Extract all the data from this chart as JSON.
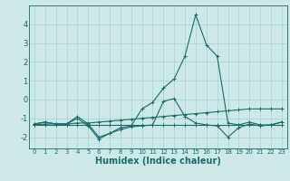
{
  "xlabel": "Humidex (Indice chaleur)",
  "xlim": [
    -0.5,
    23.5
  ],
  "ylim": [
    -2.6,
    5.0
  ],
  "yticks": [
    -2,
    -1,
    0,
    1,
    2,
    3,
    4
  ],
  "xticks": [
    0,
    1,
    2,
    3,
    4,
    5,
    6,
    7,
    8,
    9,
    10,
    11,
    12,
    13,
    14,
    15,
    16,
    17,
    18,
    19,
    20,
    21,
    22,
    23
  ],
  "background_color": "#cce9e8",
  "grid_color": "#aacfcf",
  "line_color": "#1a6b6b",
  "series": [
    {
      "x": [
        0,
        1,
        2,
        3,
        4,
        5,
        6,
        7,
        8,
        9,
        10,
        11,
        12,
        13,
        14,
        15,
        16,
        17,
        18,
        19,
        20,
        21,
        22,
        23
      ],
      "y": [
        -1.35,
        -1.3,
        -1.3,
        -1.3,
        -1.25,
        -1.25,
        -1.2,
        -1.15,
        -1.1,
        -1.05,
        -1.0,
        -0.95,
        -0.9,
        -0.85,
        -0.8,
        -0.75,
        -0.7,
        -0.65,
        -0.6,
        -0.55,
        -0.5,
        -0.5,
        -0.5,
        -0.5
      ]
    },
    {
      "x": [
        0,
        1,
        2,
        3,
        4,
        5,
        6,
        7,
        8,
        9,
        10,
        11,
        12,
        13,
        14,
        15,
        16,
        17,
        18,
        19,
        20,
        21,
        22,
        23
      ],
      "y": [
        -1.35,
        -1.35,
        -1.35,
        -1.35,
        -1.35,
        -1.35,
        -1.35,
        -1.35,
        -1.35,
        -1.35,
        -1.35,
        -1.35,
        -1.35,
        -1.35,
        -1.35,
        -1.35,
        -1.35,
        -1.35,
        -1.35,
        -1.35,
        -1.35,
        -1.35,
        -1.35,
        -1.35
      ]
    },
    {
      "x": [
        0,
        1,
        2,
        3,
        4,
        5,
        6,
        7,
        8,
        9,
        10,
        11,
        12,
        13,
        14,
        15,
        16,
        17,
        18,
        19,
        20,
        21,
        22,
        23
      ],
      "y": [
        -1.3,
        -1.2,
        -1.3,
        -1.3,
        -0.9,
        -1.3,
        -2.0,
        -1.8,
        -1.5,
        -1.4,
        -0.5,
        -0.15,
        0.6,
        1.1,
        2.3,
        4.5,
        2.9,
        2.3,
        -1.25,
        -1.35,
        -1.2,
        -1.35,
        -1.35,
        -1.2
      ]
    },
    {
      "x": [
        0,
        1,
        2,
        3,
        4,
        5,
        6,
        7,
        8,
        9,
        10,
        11,
        12,
        13,
        14,
        15,
        16,
        17,
        18,
        19,
        20,
        21,
        22,
        23
      ],
      "y": [
        -1.3,
        -1.2,
        -1.3,
        -1.3,
        -1.0,
        -1.4,
        -2.1,
        -1.8,
        -1.6,
        -1.45,
        -1.4,
        -1.35,
        -0.1,
        0.05,
        -0.9,
        -1.25,
        -1.35,
        -1.4,
        -2.0,
        -1.5,
        -1.3,
        -1.4,
        -1.35,
        -1.2
      ]
    }
  ]
}
